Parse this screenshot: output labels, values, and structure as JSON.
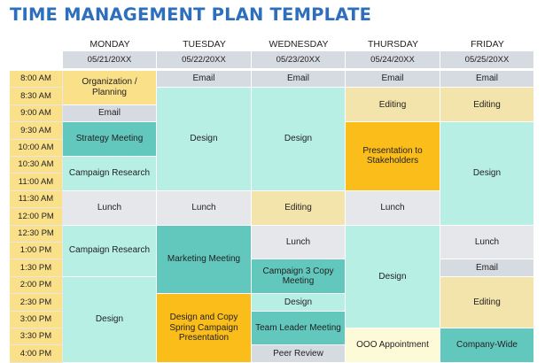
{
  "title": "TIME MANAGEMENT PLAN TEMPLATE",
  "days": [
    {
      "name": "MONDAY",
      "date": "05/21/20XX"
    },
    {
      "name": "TUESDAY",
      "date": "05/22/20XX"
    },
    {
      "name": "WEDNESDAY",
      "date": "05/23/20XX"
    },
    {
      "name": "THURSDAY",
      "date": "05/24/20XX"
    },
    {
      "name": "FRIDAY",
      "date": "05/25/20XX"
    }
  ],
  "times": [
    "8:00 AM",
    "8:30 AM",
    "9:00 AM",
    "9:30 AM",
    "10:00 AM",
    "10:30 AM",
    "11:00 AM",
    "11:30 AM",
    "12:00 PM",
    "12:30 PM",
    "1:00 PM",
    "1:30 PM",
    "2:00 PM",
    "2:30 PM",
    "3:00 PM",
    "3:30 PM",
    "4:00 PM"
  ],
  "colors": {
    "yellow": "#fbe08a",
    "gray": "#d6dae1",
    "teal": "#62c7bd",
    "mint": "#b8efe5",
    "cream": "#f2e4aa",
    "orange": "#fbbd19",
    "lightgray": "#e5e7eb",
    "paleyellow": "#fdfad8"
  },
  "events": [
    {
      "day": 0,
      "start": 0,
      "span": 2,
      "label": "Organization / Planning",
      "color": "yellow"
    },
    {
      "day": 0,
      "start": 2,
      "span": 1,
      "label": "Email",
      "color": "gray"
    },
    {
      "day": 0,
      "start": 3,
      "span": 2,
      "label": "Strategy Meeting",
      "color": "teal"
    },
    {
      "day": 0,
      "start": 5,
      "span": 2,
      "label": "Campaign Research",
      "color": "mint"
    },
    {
      "day": 0,
      "start": 7,
      "span": 2,
      "label": "Lunch",
      "color": "lightgray"
    },
    {
      "day": 0,
      "start": 9,
      "span": 3,
      "label": "Campaign Research",
      "color": "mint"
    },
    {
      "day": 0,
      "start": 12,
      "span": 5,
      "label": "Design",
      "color": "mint"
    },
    {
      "day": 1,
      "start": 0,
      "span": 1,
      "label": "Email",
      "color": "gray"
    },
    {
      "day": 1,
      "start": 1,
      "span": 6,
      "label": "Design",
      "color": "mint"
    },
    {
      "day": 1,
      "start": 7,
      "span": 2,
      "label": "Lunch",
      "color": "lightgray"
    },
    {
      "day": 1,
      "start": 9,
      "span": 4,
      "label": "Marketing Meeting",
      "color": "teal"
    },
    {
      "day": 1,
      "start": 13,
      "span": 4,
      "label": "Design and Copy Spring Campaign Presentation",
      "color": "orange"
    },
    {
      "day": 2,
      "start": 0,
      "span": 1,
      "label": "Email",
      "color": "gray"
    },
    {
      "day": 2,
      "start": 1,
      "span": 6,
      "label": "Design",
      "color": "mint"
    },
    {
      "day": 2,
      "start": 7,
      "span": 2,
      "label": "Editing",
      "color": "cream"
    },
    {
      "day": 2,
      "start": 9,
      "span": 2,
      "label": "Lunch",
      "color": "lightgray"
    },
    {
      "day": 2,
      "start": 11,
      "span": 2,
      "label": "Campaign 3 Copy Meeting",
      "color": "teal"
    },
    {
      "day": 2,
      "start": 13,
      "span": 1,
      "label": "Design",
      "color": "mint"
    },
    {
      "day": 2,
      "start": 14,
      "span": 2,
      "label": "Team Leader Meeting",
      "color": "teal"
    },
    {
      "day": 2,
      "start": 16,
      "span": 1,
      "label": "Peer Review",
      "color": "gray"
    },
    {
      "day": 3,
      "start": 0,
      "span": 1,
      "label": "Email",
      "color": "gray"
    },
    {
      "day": 3,
      "start": 1,
      "span": 2,
      "label": "Editing",
      "color": "cream"
    },
    {
      "day": 3,
      "start": 3,
      "span": 4,
      "label": "Presentation to Stakeholders",
      "color": "orange"
    },
    {
      "day": 3,
      "start": 7,
      "span": 2,
      "label": "Lunch",
      "color": "lightgray"
    },
    {
      "day": 3,
      "start": 9,
      "span": 6,
      "label": "Design",
      "color": "mint"
    },
    {
      "day": 3,
      "start": 15,
      "span": 2,
      "label": "OOO Appointment",
      "color": "paleyellow"
    },
    {
      "day": 4,
      "start": 0,
      "span": 1,
      "label": "Email",
      "color": "gray"
    },
    {
      "day": 4,
      "start": 1,
      "span": 2,
      "label": "Editing",
      "color": "cream"
    },
    {
      "day": 4,
      "start": 3,
      "span": 6,
      "label": "Design",
      "color": "mint"
    },
    {
      "day": 4,
      "start": 9,
      "span": 2,
      "label": "Lunch",
      "color": "lightgray"
    },
    {
      "day": 4,
      "start": 11,
      "span": 1,
      "label": "Email",
      "color": "gray"
    },
    {
      "day": 4,
      "start": 12,
      "span": 3,
      "label": "Editing",
      "color": "cream"
    },
    {
      "day": 4,
      "start": 15,
      "span": 2,
      "label": "Company-Wide",
      "color": "teal"
    }
  ]
}
